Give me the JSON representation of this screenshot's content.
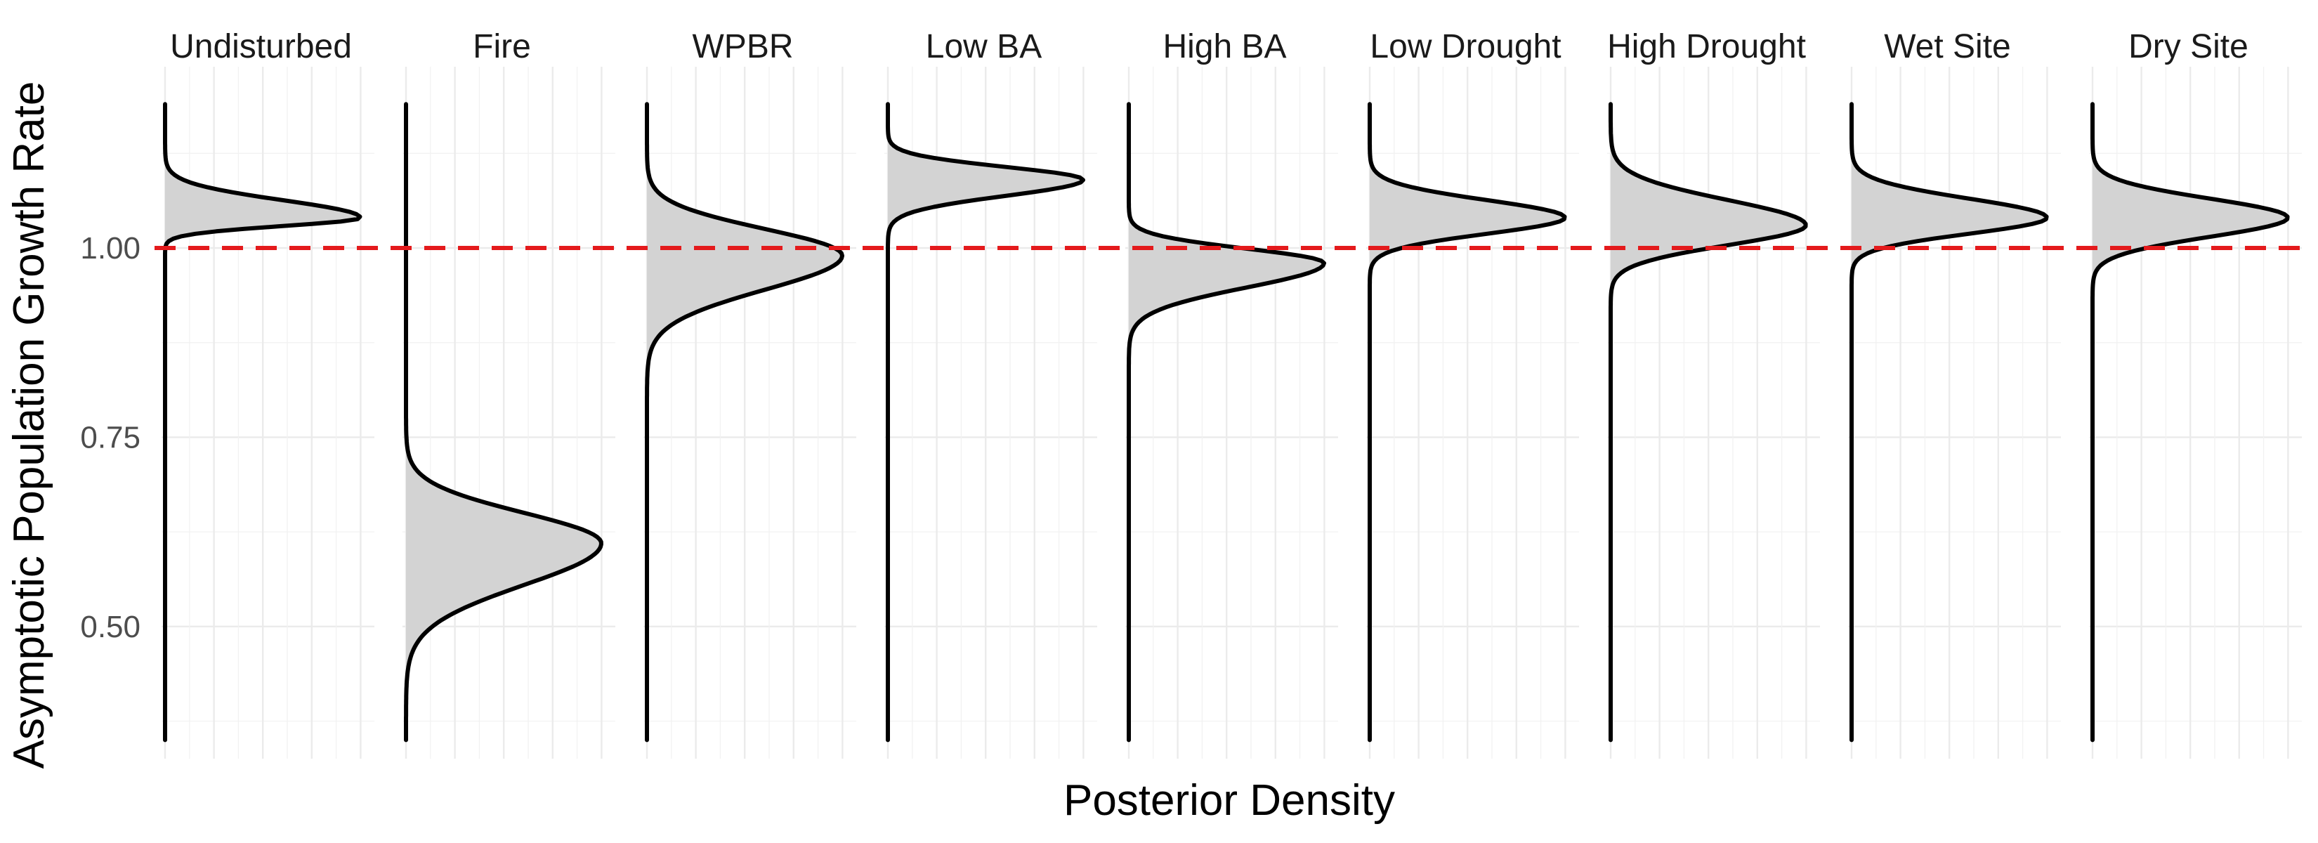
{
  "chart_data": {
    "type": "area",
    "orientation": "horizontal density (y = growth rate, x = density)",
    "xlabel": "Posterior Density",
    "ylabel": "Asymptotic Population Growth Rate",
    "ylim": [
      0.35,
      1.19
    ],
    "yticks": [
      0.5,
      0.75,
      1.0
    ],
    "ytick_labels": [
      "0.50",
      "0.75",
      "1.00"
    ],
    "reference_line": {
      "y": 1.0,
      "color": "#e41a1c",
      "style": "dashed"
    },
    "grid": true,
    "panels": [
      {
        "name": "Undisturbed",
        "peak": 1.04,
        "sd_lower": 0.011,
        "sd_upper": 0.023
      },
      {
        "name": "Fire",
        "peak": 0.61,
        "sd_lower": 0.055,
        "sd_upper": 0.04
      },
      {
        "name": "WPBR",
        "peak": 0.99,
        "sd_lower": 0.045,
        "sd_upper": 0.035
      },
      {
        "name": "Low BA",
        "peak": 1.09,
        "sd_lower": 0.021,
        "sd_upper": 0.017
      },
      {
        "name": "High BA",
        "peak": 0.98,
        "sd_lower": 0.032,
        "sd_upper": 0.019
      },
      {
        "name": "Low Drought",
        "peak": 1.04,
        "sd_lower": 0.021,
        "sd_upper": 0.023
      },
      {
        "name": "High Drought",
        "peak": 1.03,
        "sd_lower": 0.026,
        "sd_upper": 0.033
      },
      {
        "name": "Wet Site",
        "peak": 1.04,
        "sd_lower": 0.021,
        "sd_upper": 0.025
      },
      {
        "name": "Dry Site",
        "peak": 1.04,
        "sd_lower": 0.025,
        "sd_upper": 0.025
      }
    ]
  }
}
